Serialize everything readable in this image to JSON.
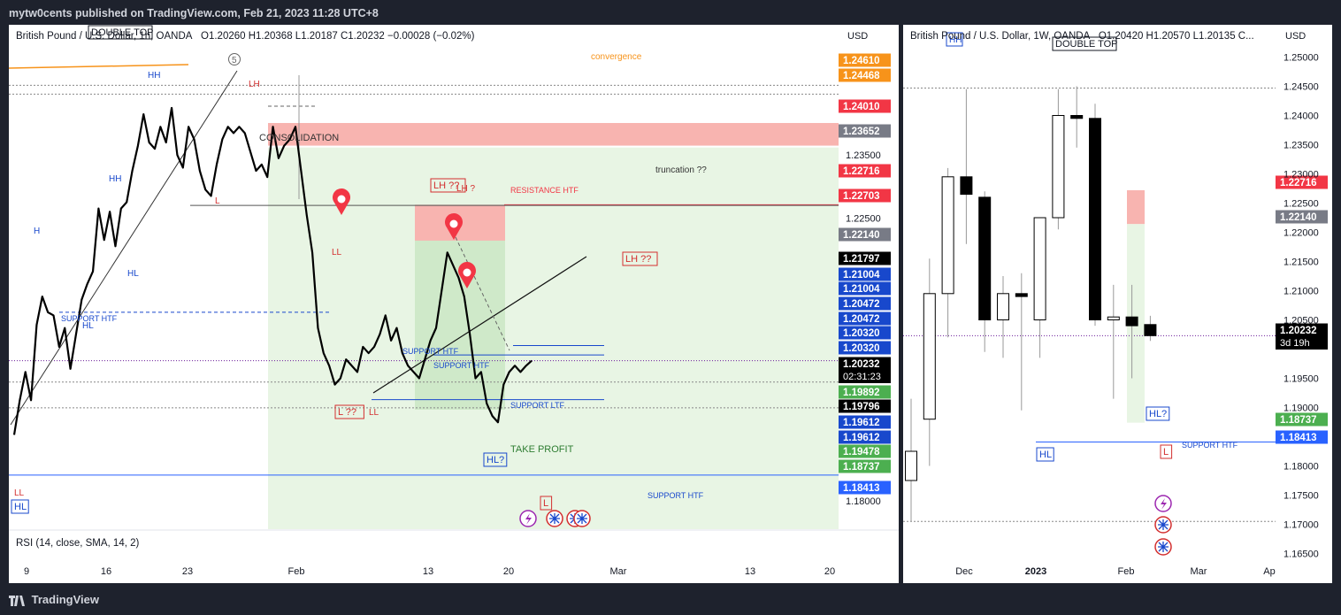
{
  "topbar": {
    "publisher_text": "mytw0cents published on TradingView.com, Feb 21, 2023 11:28 UTC+8"
  },
  "footer": {
    "brand": "TradingView"
  },
  "left_chart": {
    "symbol": "British Pound / U.S. Dollar, 1h, OANDA",
    "ohlc": "O1.20260  H1.20368  L1.20187  C1.20232  −0.00028 (−0.02%)",
    "currency": "USD",
    "indicator": "RSI (14, close, SMA, 14, 2)",
    "countdown": "02:31:23"
  },
  "right_chart": {
    "symbol": "British Pound / U.S. Dollar, 1W, OANDA",
    "ohlc": "O1.20420  H1.20570  L1.20135  C...",
    "currency": "USD",
    "countdown": "3d 19h"
  },
  "colors": {
    "bull": "#ffffff",
    "bear": "#000000",
    "resistance": "#f8b4b0",
    "green_zone": "#e8f5e4",
    "price_tag_red": "#f23645",
    "price_tag_blue": "#1848cc",
    "price_tag_green": "#4caf50",
    "price_tag_orange": "#f7931a",
    "price_tag_gray": "#787b86"
  },
  "chart_data": [
    {
      "type": "candlestick",
      "title": "British Pound / U.S. Dollar, 1h, OANDA",
      "ylim": [
        1.1755,
        1.2515
      ],
      "y_ticks": [
        1.18,
        1.225,
        1.235
      ],
      "x_labels": [
        "9",
        "16",
        "23",
        "Feb",
        "13",
        "20",
        "Mar",
        "13",
        "20"
      ],
      "close_path": [
        [
          0,
          1.1905
        ],
        [
          2,
          1.196
        ],
        [
          4,
          1.2005
        ],
        [
          6,
          1.196
        ],
        [
          8,
          1.208
        ],
        [
          10,
          1.2125
        ],
        [
          12,
          1.21
        ],
        [
          14,
          1.2095
        ],
        [
          16,
          1.2045
        ],
        [
          18,
          1.2075
        ],
        [
          20,
          1.201
        ],
        [
          22,
          1.2065
        ],
        [
          24,
          1.212
        ],
        [
          26,
          1.2145
        ],
        [
          28,
          1.2165
        ],
        [
          30,
          1.2265
        ],
        [
          32,
          1.2215
        ],
        [
          34,
          1.226
        ],
        [
          36,
          1.2205
        ],
        [
          38,
          1.2265
        ],
        [
          40,
          1.2275
        ],
        [
          42,
          1.2325
        ],
        [
          44,
          1.2365
        ],
        [
          46,
          1.2415
        ],
        [
          48,
          1.237
        ],
        [
          50,
          1.236
        ],
        [
          52,
          1.2395
        ],
        [
          54,
          1.237
        ],
        [
          56,
          1.2425
        ],
        [
          58,
          1.235
        ],
        [
          60,
          1.233
        ],
        [
          62,
          1.2395
        ],
        [
          64,
          1.2375
        ],
        [
          66,
          1.2325
        ],
        [
          68,
          1.2295
        ],
        [
          70,
          1.2285
        ],
        [
          72,
          1.2335
        ],
        [
          74,
          1.2375
        ],
        [
          76,
          1.2395
        ],
        [
          78,
          1.2385
        ],
        [
          80,
          1.2395
        ],
        [
          82,
          1.2385
        ],
        [
          84,
          1.2355
        ],
        [
          86,
          1.2325
        ],
        [
          88,
          1.2335
        ],
        [
          90,
          1.2315
        ],
        [
          92,
          1.2395
        ],
        [
          94,
          1.2345
        ],
        [
          96,
          1.2365
        ],
        [
          98,
          1.2375
        ],
        [
          100,
          1.2395
        ],
        [
          102,
          1.2325
        ],
        [
          104,
          1.2255
        ],
        [
          106,
          1.2195
        ],
        [
          108,
          1.2075
        ],
        [
          110,
          1.2035
        ],
        [
          112,
          1.2015
        ],
        [
          114,
          1.1985
        ],
        [
          116,
          1.1995
        ],
        [
          118,
          1.2025
        ],
        [
          120,
          1.2015
        ],
        [
          122,
          1.2005
        ],
        [
          124,
          1.2045
        ],
        [
          126,
          1.2035
        ],
        [
          128,
          1.2045
        ],
        [
          130,
          1.2065
        ],
        [
          132,
          1.2095
        ],
        [
          134,
          1.2055
        ],
        [
          136,
          1.2075
        ],
        [
          138,
          1.2035
        ],
        [
          140,
          1.2015
        ],
        [
          142,
          1.2005
        ],
        [
          144,
          1.1995
        ],
        [
          146,
          1.2025
        ],
        [
          148,
          1.2055
        ],
        [
          150,
          1.2075
        ],
        [
          152,
          1.2135
        ],
        [
          154,
          1.2195
        ],
        [
          156,
          1.2175
        ],
        [
          158,
          1.2155
        ],
        [
          160,
          1.2125
        ],
        [
          162,
          1.2065
        ],
        [
          164,
          1.1995
        ],
        [
          166,
          1.2005
        ],
        [
          168,
          1.1955
        ],
        [
          170,
          1.1935
        ],
        [
          172,
          1.1925
        ],
        [
          174,
          1.1985
        ],
        [
          176,
          1.2005
        ],
        [
          178,
          1.2015
        ],
        [
          180,
          1.2005
        ],
        [
          182,
          1.2015
        ],
        [
          184,
          1.2023
        ]
      ],
      "price_tags": [
        {
          "value": "1.24610",
          "color": "#f7931a"
        },
        {
          "value": "1.24468",
          "color": "#f7931a"
        },
        {
          "value": "1.24010",
          "color": "#f23645"
        },
        {
          "value": "1.23652",
          "color": "#787b86"
        },
        {
          "value": "1.22716",
          "color": "#f23645"
        },
        {
          "value": "1.22703",
          "color": "#f23645"
        },
        {
          "value": "1.22140",
          "color": "#787b86"
        },
        {
          "value": "1.21797",
          "color": "#000000"
        },
        {
          "value": "1.21004",
          "color": "#1848cc"
        },
        {
          "value": "1.21004",
          "color": "#1848cc"
        },
        {
          "value": "1.20472",
          "color": "#1848cc"
        },
        {
          "value": "1.20472",
          "color": "#1848cc"
        },
        {
          "value": "1.20320",
          "color": "#1848cc"
        },
        {
          "value": "1.20320",
          "color": "#1848cc"
        },
        {
          "value": "1.20232",
          "color": "#000000"
        },
        {
          "value": "1.19892",
          "color": "#4caf50"
        },
        {
          "value": "1.19796",
          "color": "#000000"
        },
        {
          "value": "1.19612",
          "color": "#1848cc"
        },
        {
          "value": "1.19612",
          "color": "#1848cc"
        },
        {
          "value": "1.19478",
          "color": "#4caf50"
        },
        {
          "value": "1.18737",
          "color": "#4caf50"
        },
        {
          "value": "1.18413",
          "color": "#2962ff"
        }
      ],
      "annotations": {
        "double_top": "DOUBLE TOP",
        "convergence": "convergence",
        "consolidation": "CONSOLIDATION",
        "truncation": "truncation ??",
        "resistance_htf": "RESISTANCE HTF",
        "support_htf": "SUPPORT HTF",
        "support_ltf": "SUPPORT LTF",
        "take_profit": "TAKE PROFIT",
        "wave_5": "5",
        "hh": "HH",
        "h": "H",
        "hl": "HL",
        "lh": "LH",
        "l": "L",
        "ll": "LL",
        "lh_q": "LH ??",
        "lh_q2": "LH ?",
        "l_q": "L ??",
        "hl_q": "HL?"
      }
    },
    {
      "type": "candlestick",
      "title": "British Pound / U.S. Dollar, 1W, OANDA",
      "ylim": [
        1.1625,
        1.2525
      ],
      "y_ticks": [
        1.25,
        1.245,
        1.24,
        1.235,
        1.23,
        1.225,
        1.22,
        1.215,
        1.21,
        1.205,
        1.195,
        1.19,
        1.18,
        1.175,
        1.17,
        1.165
      ],
      "x_labels": [
        "Dec",
        "2023",
        "Feb",
        "Mar",
        "Ap"
      ],
      "candles": [
        {
          "o": 1.1775,
          "h": 1.1915,
          "l": 1.1705,
          "c": 1.1825
        },
        {
          "o": 1.188,
          "h": 1.2155,
          "l": 1.18,
          "c": 1.2095
        },
        {
          "o": 1.2095,
          "h": 1.231,
          "l": 1.202,
          "c": 1.2295
        },
        {
          "o": 1.2295,
          "h": 1.2445,
          "l": 1.218,
          "c": 1.2265
        },
        {
          "o": 1.226,
          "h": 1.227,
          "l": 1.1995,
          "c": 1.205
        },
        {
          "o": 1.205,
          "h": 1.2125,
          "l": 1.1985,
          "c": 1.2095
        },
        {
          "o": 1.2095,
          "h": 1.213,
          "l": 1.1895,
          "c": 1.209
        },
        {
          "o": 1.205,
          "h": 1.2225,
          "l": 1.1985,
          "c": 1.2225
        },
        {
          "o": 1.2225,
          "h": 1.2445,
          "l": 1.2205,
          "c": 1.24
        },
        {
          "o": 1.24,
          "h": 1.245,
          "l": 1.2345,
          "c": 1.2395
        },
        {
          "o": 1.2395,
          "h": 1.242,
          "l": 1.204,
          "c": 1.205
        },
        {
          "o": 1.205,
          "h": 1.211,
          "l": 1.1915,
          "c": 1.2055
        },
        {
          "o": 1.2055,
          "h": 1.211,
          "l": 1.195,
          "c": 1.204
        },
        {
          "o": 1.2042,
          "h": 1.2057,
          "l": 1.2014,
          "c": 1.2023
        }
      ],
      "price_tags": [
        {
          "value": "1.22716",
          "color": "#f23645"
        },
        {
          "value": "1.22140",
          "color": "#787b86"
        },
        {
          "value": "1.20232",
          "color": "#000000"
        },
        {
          "value": "1.18737",
          "color": "#4caf50"
        },
        {
          "value": "1.18413",
          "color": "#2962ff"
        }
      ],
      "annotations": {
        "double_top": "DOUBLE TOP",
        "hh": "HH",
        "hl": "HL",
        "l": "L",
        "hl_q": "HL?",
        "support_htf": "SUPPORT HTF"
      }
    }
  ]
}
